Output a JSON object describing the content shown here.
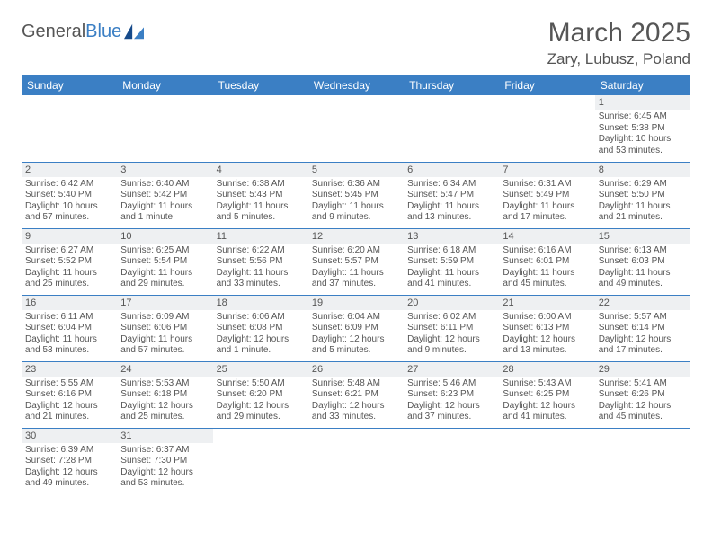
{
  "logo": {
    "word1": "General",
    "word2": "Blue",
    "shape_color": "#164a8a"
  },
  "title": "March 2025",
  "location": "Zary, Lubusz, Poland",
  "colors": {
    "header_bg": "#3b7fc4",
    "header_text": "#ffffff",
    "daynum_bg": "#eef0f2",
    "border": "#3b7fc4",
    "text": "#555555"
  },
  "day_labels": [
    "Sunday",
    "Monday",
    "Tuesday",
    "Wednesday",
    "Thursday",
    "Friday",
    "Saturday"
  ],
  "weeks": [
    [
      null,
      null,
      null,
      null,
      null,
      null,
      {
        "n": "1",
        "sr": "6:45 AM",
        "ss": "5:38 PM",
        "dl": "10 hours and 53 minutes."
      }
    ],
    [
      {
        "n": "2",
        "sr": "6:42 AM",
        "ss": "5:40 PM",
        "dl": "10 hours and 57 minutes."
      },
      {
        "n": "3",
        "sr": "6:40 AM",
        "ss": "5:42 PM",
        "dl": "11 hours and 1 minute."
      },
      {
        "n": "4",
        "sr": "6:38 AM",
        "ss": "5:43 PM",
        "dl": "11 hours and 5 minutes."
      },
      {
        "n": "5",
        "sr": "6:36 AM",
        "ss": "5:45 PM",
        "dl": "11 hours and 9 minutes."
      },
      {
        "n": "6",
        "sr": "6:34 AM",
        "ss": "5:47 PM",
        "dl": "11 hours and 13 minutes."
      },
      {
        "n": "7",
        "sr": "6:31 AM",
        "ss": "5:49 PM",
        "dl": "11 hours and 17 minutes."
      },
      {
        "n": "8",
        "sr": "6:29 AM",
        "ss": "5:50 PM",
        "dl": "11 hours and 21 minutes."
      }
    ],
    [
      {
        "n": "9",
        "sr": "6:27 AM",
        "ss": "5:52 PM",
        "dl": "11 hours and 25 minutes."
      },
      {
        "n": "10",
        "sr": "6:25 AM",
        "ss": "5:54 PM",
        "dl": "11 hours and 29 minutes."
      },
      {
        "n": "11",
        "sr": "6:22 AM",
        "ss": "5:56 PM",
        "dl": "11 hours and 33 minutes."
      },
      {
        "n": "12",
        "sr": "6:20 AM",
        "ss": "5:57 PM",
        "dl": "11 hours and 37 minutes."
      },
      {
        "n": "13",
        "sr": "6:18 AM",
        "ss": "5:59 PM",
        "dl": "11 hours and 41 minutes."
      },
      {
        "n": "14",
        "sr": "6:16 AM",
        "ss": "6:01 PM",
        "dl": "11 hours and 45 minutes."
      },
      {
        "n": "15",
        "sr": "6:13 AM",
        "ss": "6:03 PM",
        "dl": "11 hours and 49 minutes."
      }
    ],
    [
      {
        "n": "16",
        "sr": "6:11 AM",
        "ss": "6:04 PM",
        "dl": "11 hours and 53 minutes."
      },
      {
        "n": "17",
        "sr": "6:09 AM",
        "ss": "6:06 PM",
        "dl": "11 hours and 57 minutes."
      },
      {
        "n": "18",
        "sr": "6:06 AM",
        "ss": "6:08 PM",
        "dl": "12 hours and 1 minute."
      },
      {
        "n": "19",
        "sr": "6:04 AM",
        "ss": "6:09 PM",
        "dl": "12 hours and 5 minutes."
      },
      {
        "n": "20",
        "sr": "6:02 AM",
        "ss": "6:11 PM",
        "dl": "12 hours and 9 minutes."
      },
      {
        "n": "21",
        "sr": "6:00 AM",
        "ss": "6:13 PM",
        "dl": "12 hours and 13 minutes."
      },
      {
        "n": "22",
        "sr": "5:57 AM",
        "ss": "6:14 PM",
        "dl": "12 hours and 17 minutes."
      }
    ],
    [
      {
        "n": "23",
        "sr": "5:55 AM",
        "ss": "6:16 PM",
        "dl": "12 hours and 21 minutes."
      },
      {
        "n": "24",
        "sr": "5:53 AM",
        "ss": "6:18 PM",
        "dl": "12 hours and 25 minutes."
      },
      {
        "n": "25",
        "sr": "5:50 AM",
        "ss": "6:20 PM",
        "dl": "12 hours and 29 minutes."
      },
      {
        "n": "26",
        "sr": "5:48 AM",
        "ss": "6:21 PM",
        "dl": "12 hours and 33 minutes."
      },
      {
        "n": "27",
        "sr": "5:46 AM",
        "ss": "6:23 PM",
        "dl": "12 hours and 37 minutes."
      },
      {
        "n": "28",
        "sr": "5:43 AM",
        "ss": "6:25 PM",
        "dl": "12 hours and 41 minutes."
      },
      {
        "n": "29",
        "sr": "5:41 AM",
        "ss": "6:26 PM",
        "dl": "12 hours and 45 minutes."
      }
    ],
    [
      {
        "n": "30",
        "sr": "6:39 AM",
        "ss": "7:28 PM",
        "dl": "12 hours and 49 minutes."
      },
      {
        "n": "31",
        "sr": "6:37 AM",
        "ss": "7:30 PM",
        "dl": "12 hours and 53 minutes."
      },
      null,
      null,
      null,
      null,
      null
    ]
  ],
  "labels": {
    "sunrise": "Sunrise:",
    "sunset": "Sunset:",
    "daylight": "Daylight:"
  }
}
